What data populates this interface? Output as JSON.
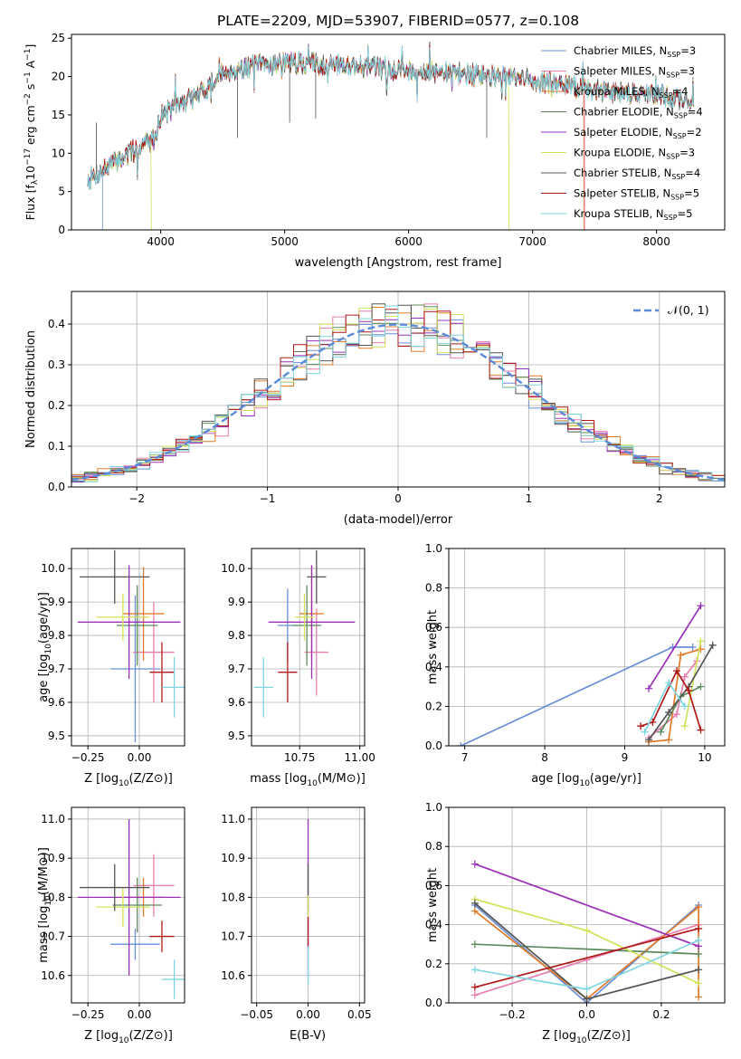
{
  "figure": {
    "title": "PLATE=2209, MJD=53907, FIBERID=0577, z=0.108"
  },
  "colors": {
    "Chabrier MILES": "#6a8fd8",
    "Salpeter MILES": "#e77fae",
    "Kroupa MILES": "#e07b2c",
    "Chabrier ELODIE": "#5d8a5d",
    "Salpeter ELODIE": "#9b30b8",
    "Kroupa ELODIE": "#d2e25c",
    "Chabrier STELIB": "#555555",
    "Salpeter STELIB": "#b01818",
    "Kroupa STELIB": "#7fd6e0"
  },
  "chart_data": [
    {
      "id": "spectrum",
      "type": "line",
      "title": "PLATE=2209, MJD=53907, FIBERID=0577, z=0.108",
      "xlabel": "wavelength [Angstrom, rest frame]",
      "ylabel_parts": [
        "Flux [f",
        "λ",
        "10",
        "−17",
        " erg cm",
        "−2",
        " s",
        "−1",
        " A",
        "−1",
        "]"
      ],
      "xlim": [
        3280,
        8550
      ],
      "ylim": [
        0,
        25.5
      ],
      "xticks": [
        4000,
        5000,
        6000,
        7000,
        8000
      ],
      "yticks": [
        0,
        5,
        10,
        15,
        20,
        25
      ],
      "legend_position": "upper right",
      "legend": [
        {
          "name": "Chabrier MILES",
          "label": "Chabrier MILES, N",
          "sub": "SSP",
          "tail": "=3"
        },
        {
          "name": "Salpeter MILES",
          "label": "Salpeter MILES, N",
          "sub": "SSP",
          "tail": "=3"
        },
        {
          "name": "Kroupa MILES",
          "label": "Kroupa MILES, N",
          "sub": "SSP",
          "tail": "=4"
        },
        {
          "name": "Chabrier ELODIE",
          "label": "Chabrier ELODIE, N",
          "sub": "SSP",
          "tail": "=4"
        },
        {
          "name": "Salpeter ELODIE",
          "label": "Salpeter ELODIE, N",
          "sub": "SSP",
          "tail": "=2"
        },
        {
          "name": "Kroupa ELODIE",
          "label": "Kroupa ELODIE, N",
          "sub": "SSP",
          "tail": "=3"
        },
        {
          "name": "Chabrier STELIB",
          "label": "Chabrier STELIB, N",
          "sub": "SSP",
          "tail": "=4"
        },
        {
          "name": "Salpeter STELIB",
          "label": "Salpeter STELIB, N",
          "sub": "SSP",
          "tail": "=5"
        },
        {
          "name": "Kroupa STELIB",
          "label": "Kroupa STELIB, N",
          "sub": "SSP",
          "tail": "=5"
        }
      ],
      "continuum_nodes": [
        [
          3410,
          6.5
        ],
        [
          3600,
          8.5
        ],
        [
          3800,
          10.5
        ],
        [
          3950,
          12.0
        ],
        [
          4000,
          15.0
        ],
        [
          4300,
          17.5
        ],
        [
          4500,
          20.5
        ],
        [
          4800,
          21.5
        ],
        [
          5000,
          21.8
        ],
        [
          5500,
          21.5
        ],
        [
          6000,
          20.8
        ],
        [
          6500,
          20.3
        ],
        [
          7000,
          19.5
        ],
        [
          7500,
          18.2
        ],
        [
          8000,
          17.6
        ],
        [
          8300,
          16.8
        ]
      ],
      "drops": [
        {
          "series": "Chabrier MILES",
          "x": 3530
        },
        {
          "series": "Salpeter MILES",
          "x": 7420
        },
        {
          "series": "Kroupa MILES",
          "x": 7415
        },
        {
          "series": "Kroupa ELODIE",
          "x": 3925
        },
        {
          "series": "Kroupa ELODIE",
          "x": 6810
        }
      ]
    },
    {
      "id": "residuals",
      "type": "histogram",
      "xlabel": "(data-model)/error",
      "ylabel": "Normed distribution",
      "xlim": [
        -2.5,
        2.5
      ],
      "ylim": [
        0,
        0.48
      ],
      "xticks": [
        -2,
        -1,
        0,
        1,
        2
      ],
      "yticks": [
        0.0,
        0.1,
        0.2,
        0.3,
        0.4
      ],
      "bin_width": 0.1,
      "legend_position": "upper right",
      "legend": {
        "label": "𝒩(0, 1)"
      },
      "reference_curve": "standard normal pdf"
    },
    {
      "id": "age-vs-Z",
      "type": "errorbar",
      "xlabel_text": "Z [log",
      "xlabel_sub": "10",
      "xlabel_tail": "(Z/Z⊙)]",
      "ylabel_text": "age  [log",
      "ylabel_sub": "10",
      "ylabel_tail": "(age/yr)]",
      "xlim": [
        -0.33,
        0.22
      ],
      "ylim": [
        9.47,
        10.06
      ],
      "xticks": [
        -0.25,
        0.0
      ],
      "xtick_labels": [
        "−0.25",
        "0.00"
      ],
      "yticks": [
        9.5,
        9.6,
        9.7,
        9.8,
        9.9,
        10.0
      ],
      "points": [
        {
          "series": "Chabrier MILES",
          "x": -0.02,
          "xerr": 0.12,
          "y": 9.7,
          "yerr": 0.22
        },
        {
          "series": "Salpeter MILES",
          "x": 0.07,
          "xerr": 0.1,
          "y": 9.75,
          "yerr": 0.15
        },
        {
          "series": "Kroupa MILES",
          "x": 0.02,
          "xerr": 0.1,
          "y": 9.865,
          "yerr": 0.14
        },
        {
          "series": "Chabrier ELODIE",
          "x": -0.01,
          "xerr": 0.1,
          "y": 9.83,
          "yerr": 0.12
        },
        {
          "series": "Salpeter ELODIE",
          "x": -0.05,
          "xerr": 0.25,
          "y": 9.84,
          "yerr": 0.17
        },
        {
          "series": "Kroupa ELODIE",
          "x": -0.08,
          "xerr": 0.13,
          "y": 9.855,
          "yerr": 0.07
        },
        {
          "series": "Chabrier STELIB",
          "x": -0.12,
          "xerr": 0.17,
          "y": 9.975,
          "yerr": 0.08
        },
        {
          "series": "Salpeter STELIB",
          "x": 0.11,
          "xerr": 0.06,
          "y": 9.69,
          "yerr": 0.09
        },
        {
          "series": "Kroupa STELIB",
          "x": 0.17,
          "xerr": 0.06,
          "y": 9.645,
          "yerr": 0.09
        }
      ]
    },
    {
      "id": "age-vs-mass",
      "type": "errorbar",
      "xlabel_text": "mass [log",
      "xlabel_sub": "10",
      "xlabel_tail": "(M/M⊙)]",
      "ylabel_text": "",
      "xlim": [
        10.55,
        11.02
      ],
      "ylim": [
        9.47,
        10.06
      ],
      "xticks": [
        10.75,
        11.0
      ],
      "xtick_labels": [
        "10.75",
        "11.00"
      ],
      "yticks": [
        9.5,
        9.6,
        9.7,
        9.8,
        9.9,
        10.0
      ],
      "points": [
        {
          "series": "Chabrier MILES",
          "x": 10.7,
          "xerr": 0.04,
          "y": 9.83,
          "yerr": 0.11
        },
        {
          "series": "Salpeter MILES",
          "x": 10.82,
          "xerr": 0.05,
          "y": 9.75,
          "yerr": 0.13
        },
        {
          "series": "Kroupa MILES",
          "x": 10.8,
          "xerr": 0.05,
          "y": 9.865,
          "yerr": 0.14
        },
        {
          "series": "Chabrier ELODIE",
          "x": 10.78,
          "xerr": 0.06,
          "y": 9.83,
          "yerr": 0.12
        },
        {
          "series": "Salpeter ELODIE",
          "x": 10.8,
          "xerr": 0.18,
          "y": 9.84,
          "yerr": 0.17
        },
        {
          "series": "Kroupa ELODIE",
          "x": 10.77,
          "xerr": 0.04,
          "y": 9.855,
          "yerr": 0.07
        },
        {
          "series": "Chabrier STELIB",
          "x": 10.82,
          "xerr": 0.04,
          "y": 9.975,
          "yerr": 0.08
        },
        {
          "series": "Salpeter STELIB",
          "x": 10.7,
          "xerr": 0.04,
          "y": 9.69,
          "yerr": 0.09
        },
        {
          "series": "Kroupa STELIB",
          "x": 10.6,
          "xerr": 0.04,
          "y": 9.645,
          "yerr": 0.09
        }
      ]
    },
    {
      "id": "weight-vs-age",
      "type": "line",
      "xlabel_text": "age  [log",
      "xlabel_sub": "10",
      "xlabel_tail": "(age/yr)]",
      "ylabel_text": "mass weight",
      "xlim": [
        6.8,
        10.25
      ],
      "ylim": [
        0,
        1.0
      ],
      "xticks": [
        7,
        8,
        9,
        10
      ],
      "xtick_labels": [
        "7",
        "8",
        "9",
        "10"
      ],
      "yticks": [
        0.0,
        0.2,
        0.4,
        0.6,
        0.8,
        1.0
      ],
      "series": [
        {
          "name": "Chabrier MILES",
          "points": [
            [
              6.95,
              0.0
            ],
            [
              9.6,
              0.5
            ],
            [
              9.85,
              0.5
            ]
          ]
        },
        {
          "name": "Salpeter MILES",
          "points": [
            [
              9.3,
              0.04
            ],
            [
              9.65,
              0.16
            ],
            [
              9.75,
              0.35
            ],
            [
              9.9,
              0.43
            ]
          ]
        },
        {
          "name": "Kroupa MILES",
          "points": [
            [
              9.3,
              0.02
            ],
            [
              9.55,
              0.03
            ],
            [
              9.7,
              0.46
            ],
            [
              9.95,
              0.49
            ]
          ]
        },
        {
          "name": "Chabrier ELODIE",
          "points": [
            [
              9.45,
              0.07
            ],
            [
              9.7,
              0.25
            ],
            [
              9.95,
              0.3
            ]
          ]
        },
        {
          "name": "Salpeter ELODIE",
          "points": [
            [
              9.3,
              0.29
            ],
            [
              9.95,
              0.71
            ]
          ]
        },
        {
          "name": "Kroupa ELODIE",
          "points": [
            [
              9.75,
              0.1
            ],
            [
              9.95,
              0.53
            ]
          ]
        },
        {
          "name": "Chabrier STELIB",
          "points": [
            [
              9.3,
              0.03
            ],
            [
              9.55,
              0.17
            ],
            [
              9.8,
              0.3
            ],
            [
              10.1,
              0.51
            ]
          ]
        },
        {
          "name": "Salpeter STELIB",
          "points": [
            [
              9.2,
              0.1
            ],
            [
              9.35,
              0.12
            ],
            [
              9.65,
              0.38
            ],
            [
              9.8,
              0.28
            ],
            [
              9.95,
              0.08
            ]
          ]
        },
        {
          "name": "Kroupa STELIB",
          "points": [
            [
              9.25,
              0.07
            ],
            [
              9.55,
              0.32
            ],
            [
              9.75,
              0.2
            ]
          ]
        }
      ]
    },
    {
      "id": "mass-vs-Z",
      "type": "errorbar",
      "xlabel_text": "Z [log",
      "xlabel_sub": "10",
      "xlabel_tail": "(Z/Z⊙)]",
      "ylabel_text": "mass [log",
      "ylabel_sub": "10",
      "ylabel_tail": "(M/M⊙)]",
      "xlim": [
        -0.33,
        0.22
      ],
      "ylim": [
        10.53,
        11.03
      ],
      "xticks": [
        -0.25,
        0.0
      ],
      "xtick_labels": [
        "−0.25",
        "0.00"
      ],
      "yticks": [
        10.6,
        10.7,
        10.8,
        10.9,
        11.0
      ],
      "points": [
        {
          "series": "Chabrier MILES",
          "x": -0.02,
          "xerr": 0.12,
          "y": 10.68,
          "yerr": 0.04
        },
        {
          "series": "Salpeter MILES",
          "x": 0.07,
          "xerr": 0.1,
          "y": 10.83,
          "yerr": 0.08
        },
        {
          "series": "Kroupa MILES",
          "x": 0.02,
          "xerr": 0.1,
          "y": 10.8,
          "yerr": 0.05
        },
        {
          "series": "Chabrier ELODIE",
          "x": -0.01,
          "xerr": 0.12,
          "y": 10.78,
          "yerr": 0.07
        },
        {
          "series": "Salpeter ELODIE",
          "x": -0.05,
          "xerr": 0.25,
          "y": 10.8,
          "yerr": 0.2
        },
        {
          "series": "Kroupa ELODIE",
          "x": -0.08,
          "xerr": 0.13,
          "y": 10.775,
          "yerr": 0.05
        },
        {
          "series": "Chabrier STELIB",
          "x": -0.12,
          "xerr": 0.17,
          "y": 10.825,
          "yerr": 0.06
        },
        {
          "series": "Salpeter STELIB",
          "x": 0.11,
          "xerr": 0.06,
          "y": 10.7,
          "yerr": 0.04
        },
        {
          "series": "Kroupa STELIB",
          "x": 0.17,
          "xerr": 0.06,
          "y": 10.59,
          "yerr": 0.05
        }
      ]
    },
    {
      "id": "mass-vs-ebv",
      "type": "errorbar",
      "xlabel_text": "E(B-V)",
      "ylabel_text": "",
      "xlim": [
        -0.055,
        0.055
      ],
      "ylim": [
        10.53,
        11.03
      ],
      "xticks": [
        -0.05,
        0.0,
        0.05
      ],
      "xtick_labels": [
        "−0.05",
        "0.00",
        "0.05"
      ],
      "yticks": [
        10.6,
        10.7,
        10.8,
        10.9,
        11.0
      ],
      "points": [
        {
          "series": "Salpeter ELODIE",
          "x": 0.0,
          "xerr": 0.0,
          "y": 10.8,
          "yerr": 0.2
        },
        {
          "series": "Chabrier STELIB",
          "x": 0.0,
          "xerr": 0.0,
          "y": 10.825,
          "yerr": 0.06
        },
        {
          "series": "Kroupa ELODIE",
          "x": 0.0,
          "xerr": 0.0,
          "y": 10.775,
          "yerr": 0.03
        },
        {
          "series": "Salpeter STELIB",
          "x": 0.0,
          "xerr": 0.0,
          "y": 10.71,
          "yerr": 0.04
        },
        {
          "series": "Kroupa STELIB",
          "x": 0.0,
          "xerr": 0.0,
          "y": 10.625,
          "yerr": 0.05
        }
      ]
    },
    {
      "id": "weight-vs-Z",
      "type": "line",
      "xlabel_text": "Z [log",
      "xlabel_sub": "10",
      "xlabel_tail": "(Z/Z⊙)]",
      "ylabel_text": "mass weight",
      "xlim": [
        -0.37,
        0.37
      ],
      "ylim": [
        0,
        1.0
      ],
      "xticks": [
        -0.2,
        0.0,
        0.2
      ],
      "xtick_labels": [
        "−0.2",
        "0.0",
        "0.2"
      ],
      "yticks": [
        0.0,
        0.2,
        0.4,
        0.6,
        0.8,
        1.0
      ],
      "series": [
        {
          "name": "Chabrier MILES",
          "points": [
            [
              -0.3,
              0.5
            ],
            [
              0.0,
              0.0
            ],
            [
              0.3,
              0.5
            ]
          ]
        },
        {
          "name": "Salpeter MILES",
          "points": [
            [
              -0.3,
              0.04
            ],
            [
              0.0,
              0.22
            ],
            [
              0.3,
              0.4
            ]
          ]
        },
        {
          "name": "Kroupa MILES",
          "points": [
            [
              -0.3,
              0.47
            ],
            [
              0.0,
              0.02
            ],
            [
              0.3,
              0.49
            ],
            [
              0.3,
              0.03
            ]
          ]
        },
        {
          "name": "Chabrier ELODIE",
          "points": [
            [
              -0.3,
              0.3
            ],
            [
              0.3,
              0.25
            ]
          ]
        },
        {
          "name": "Salpeter ELODIE",
          "points": [
            [
              -0.3,
              0.71
            ],
            [
              0.3,
              0.29
            ]
          ]
        },
        {
          "name": "Kroupa ELODIE",
          "points": [
            [
              -0.3,
              0.53
            ],
            [
              0.0,
              0.37
            ],
            [
              0.3,
              0.1
            ]
          ]
        },
        {
          "name": "Chabrier STELIB",
          "points": [
            [
              -0.3,
              0.51
            ],
            [
              0.0,
              0.02
            ],
            [
              0.3,
              0.17
            ]
          ]
        },
        {
          "name": "Salpeter STELIB",
          "points": [
            [
              -0.3,
              0.08
            ],
            [
              0.3,
              0.38
            ]
          ]
        },
        {
          "name": "Kroupa STELIB",
          "points": [
            [
              -0.3,
              0.17
            ],
            [
              0.0,
              0.07
            ],
            [
              0.3,
              0.32
            ]
          ]
        }
      ]
    }
  ]
}
